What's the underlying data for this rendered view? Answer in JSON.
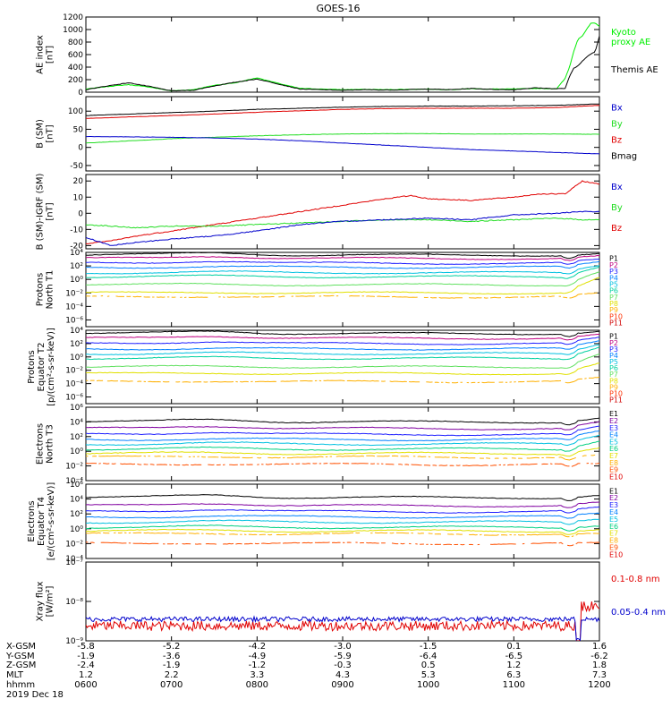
{
  "title": "GOES-16",
  "colors": {
    "black": "#000000",
    "red": "#e00000",
    "green": "#22dd22",
    "blue": "#0000cc",
    "ae_green": "#00ee00",
    "ae_black": "#000000"
  },
  "legend_colors": {
    "P": [
      "#000000",
      "#c00080",
      "#2020ff",
      "#0080ff",
      "#00c0e0",
      "#00d0a0",
      "#60e060",
      "#e0e000",
      "#ffb000",
      "#ff3000",
      "#d00000"
    ],
    "E": [
      "#000000",
      "#8000a0",
      "#2020ff",
      "#0080ff",
      "#00c0e0",
      "#00d080",
      "#e0e000",
      "#ffb000",
      "#ff5000",
      "#e00000",
      "#c00000"
    ]
  },
  "panels": [
    {
      "ylabel": [
        "AE index",
        "[nT]"
      ],
      "scale": "linear",
      "ylim": [
        0,
        1200
      ],
      "ticks": [
        {
          "v": 0,
          "t": "0"
        },
        {
          "v": 200,
          "t": "200"
        },
        {
          "v": 400,
          "t": "400"
        },
        {
          "v": 600,
          "t": "600"
        },
        {
          "v": 800,
          "t": "800"
        },
        {
          "v": 1000,
          "t": "1000"
        },
        {
          "v": 1200,
          "t": "1200"
        }
      ],
      "legend": [
        {
          "text": "Kyoto",
          "color": "#00ee00"
        },
        {
          "text": "proxy AE",
          "color": "#00ee00"
        },
        {
          "text": "Themis AE",
          "color": "#000000"
        }
      ]
    },
    {
      "ylabel": [
        "B (SM)",
        "[nT]"
      ],
      "scale": "linear",
      "ylim": [
        -65,
        140
      ],
      "ticks": [
        {
          "v": -50,
          "t": "-50"
        },
        {
          "v": 0,
          "t": "0"
        },
        {
          "v": 50,
          "t": "50"
        },
        {
          "v": 100,
          "t": "100"
        }
      ],
      "legend": [
        {
          "text": "Bx",
          "color": "#0000cc"
        },
        {
          "text": "By",
          "color": "#22dd22"
        },
        {
          "text": "Bz",
          "color": "#e00000"
        },
        {
          "text": "Bmag",
          "color": "#000000"
        }
      ]
    },
    {
      "ylabel": [
        "B (SM)-IGRF (SM)",
        "[nT]"
      ],
      "scale": "linear",
      "ylim": [
        -22,
        24
      ],
      "ticks": [
        {
          "v": -20,
          "t": "-20"
        },
        {
          "v": -10,
          "t": "-10"
        },
        {
          "v": 0,
          "t": "0"
        },
        {
          "v": 10,
          "t": "10"
        },
        {
          "v": 20,
          "t": "20"
        }
      ],
      "legend": [
        {
          "text": "Bx",
          "color": "#0000cc"
        },
        {
          "text": "By",
          "color": "#22dd22"
        },
        {
          "text": "Bz",
          "color": "#e00000"
        }
      ]
    },
    {
      "ylabel": [
        "Protons",
        "North T1"
      ],
      "scale": "log",
      "ylim": [
        -7,
        4
      ],
      "ticks": [
        {
          "v": 4,
          "t": "10⁴"
        },
        {
          "v": 2,
          "t": "10²"
        },
        {
          "v": 0,
          "t": "10⁰"
        },
        {
          "v": -2,
          "t": "10⁻²"
        },
        {
          "v": -4,
          "t": "10⁻⁴"
        },
        {
          "v": -6,
          "t": "10⁻⁶"
        }
      ],
      "channels": [
        "P1",
        "P2",
        "P3",
        "P4",
        "P5",
        "P6",
        "P7",
        "P8",
        "P9",
        "P10",
        "P11"
      ]
    },
    {
      "ylabel": [
        "Protons",
        "Equator T2",
        "[p/(cm²-s-sr-keV)]"
      ],
      "scale": "log",
      "ylim": [
        -7,
        4
      ],
      "ticks": [
        {
          "v": 4,
          "t": "10⁴"
        },
        {
          "v": 2,
          "t": "10²"
        },
        {
          "v": 0,
          "t": "10⁰"
        },
        {
          "v": -2,
          "t": "10⁻²"
        },
        {
          "v": -4,
          "t": "10⁻⁴"
        },
        {
          "v": -6,
          "t": "10⁻⁶"
        }
      ],
      "channels": [
        "P1",
        "P2",
        "P3",
        "P4",
        "P5",
        "P6",
        "P7",
        "P8",
        "P9",
        "P10",
        "P11"
      ]
    },
    {
      "ylabel": [
        "Electrons",
        "North T3"
      ],
      "scale": "log",
      "ylim": [
        -4,
        6
      ],
      "ticks": [
        {
          "v": 6,
          "t": "10⁶"
        },
        {
          "v": 4,
          "t": "10⁴"
        },
        {
          "v": 2,
          "t": "10²"
        },
        {
          "v": 0,
          "t": "10⁰"
        },
        {
          "v": -2,
          "t": "10⁻²"
        },
        {
          "v": -4,
          "t": "10⁻⁴"
        }
      ],
      "channels": [
        "E1",
        "E2",
        "E3",
        "E4",
        "E5",
        "E6",
        "E7",
        "E8",
        "E9",
        "E10"
      ]
    },
    {
      "ylabel": [
        "Electrons",
        "Equator T4",
        "[e/(cm²-s-sr-keV)]"
      ],
      "scale": "log",
      "ylim": [
        -4,
        6
      ],
      "ticks": [
        {
          "v": 6,
          "t": "10⁶"
        },
        {
          "v": 4,
          "t": "10⁴"
        },
        {
          "v": 2,
          "t": "10²"
        },
        {
          "v": 0,
          "t": "10⁰"
        },
        {
          "v": -2,
          "t": "10⁻²"
        },
        {
          "v": -4,
          "t": "10⁻⁴"
        }
      ],
      "channels": [
        "E1",
        "E2",
        "E3",
        "E4",
        "E5",
        "E6",
        "E7",
        "E8",
        "E9",
        "E10"
      ]
    },
    {
      "ylabel": [
        "Xray flux",
        "[W/m²]"
      ],
      "scale": "log",
      "ylim": [
        -9,
        -7
      ],
      "ticks": [
        {
          "v": -7,
          "t": "10⁻⁷"
        },
        {
          "v": -8,
          "t": "10⁻⁸"
        },
        {
          "v": -9,
          "t": "10⁻⁹"
        }
      ],
      "legend": [
        {
          "text": "0.1-0.8 nm",
          "color": "#e00000"
        },
        {
          "text": "0.05-0.4 nm",
          "color": "#0000cc"
        }
      ]
    }
  ],
  "chart_data": {
    "type": "line",
    "title": "GOES-16",
    "x": [
      "0600",
      "0700",
      "0800",
      "0900",
      "1000",
      "1100",
      "1200"
    ],
    "xlabel": "hhmm",
    "date": "2019 Dec 18",
    "series": [
      {
        "panel": 0,
        "name": "Kyoto proxy AE",
        "color": "#00ee00",
        "x": [
          0,
          0.25,
          0.5,
          0.75,
          1.0,
          1.25,
          1.5,
          1.75,
          2.0,
          2.25,
          2.5,
          2.75,
          3.0,
          3.25,
          3.5,
          3.75,
          4.0,
          4.25,
          4.5,
          4.75,
          5.0,
          5.25,
          5.5,
          5.6,
          5.65,
          5.7,
          5.75,
          5.8,
          5.85,
          5.9,
          5.95,
          6.0
        ],
        "y": [
          50,
          90,
          120,
          80,
          20,
          40,
          110,
          150,
          230,
          140,
          60,
          50,
          40,
          45,
          40,
          45,
          50,
          40,
          55,
          50,
          50,
          60,
          55,
          220,
          400,
          650,
          850,
          900,
          1000,
          1100,
          1100,
          1050
        ]
      },
      {
        "panel": 0,
        "name": "Themis AE",
        "color": "#000000",
        "x": [
          0,
          0.25,
          0.5,
          0.75,
          1.0,
          1.25,
          1.5,
          1.75,
          2.0,
          2.25,
          2.5,
          2.75,
          3.0,
          3.25,
          3.5,
          3.75,
          4.0,
          4.25,
          4.5,
          4.75,
          5.0,
          5.25,
          5.5,
          5.6,
          5.65,
          5.7,
          5.75,
          5.8,
          5.85,
          5.9,
          5.95,
          6.0
        ],
        "y": [
          40,
          100,
          150,
          90,
          20,
          30,
          100,
          160,
          210,
          130,
          50,
          40,
          30,
          40,
          35,
          40,
          50,
          40,
          60,
          45,
          40,
          70,
          55,
          60,
          250,
          380,
          420,
          500,
          560,
          610,
          640,
          900
        ]
      },
      {
        "panel": 1,
        "name": "Bz",
        "color": "#e00000",
        "x": [
          0,
          0.5,
          1,
          1.5,
          2,
          2.5,
          3,
          3.5,
          4,
          4.5,
          5,
          5.5,
          6
        ],
        "y": [
          80,
          84,
          88,
          92,
          97,
          101,
          105,
          107,
          108,
          108,
          108,
          110,
          116
        ]
      },
      {
        "panel": 1,
        "name": "By",
        "color": "#22dd22",
        "x": [
          0,
          0.5,
          1,
          1.5,
          2,
          2.5,
          3,
          3.5,
          4,
          4.5,
          5,
          5.5,
          6
        ],
        "y": [
          12,
          18,
          24,
          28,
          32,
          35,
          37,
          38,
          38,
          37,
          37,
          37,
          36
        ]
      },
      {
        "panel": 1,
        "name": "Bx",
        "color": "#0000cc",
        "x": [
          0,
          0.5,
          1,
          1.5,
          2,
          2.5,
          3,
          3.5,
          4,
          4.5,
          5,
          5.5,
          6
        ],
        "y": [
          30,
          29,
          28,
          26,
          23,
          18,
          12,
          6,
          0,
          -6,
          -10,
          -14,
          -18
        ]
      },
      {
        "panel": 1,
        "name": "Bmag",
        "color": "#000000",
        "x": [
          0,
          0.5,
          1,
          1.5,
          2,
          2.5,
          3,
          3.5,
          4,
          4.5,
          5,
          5.5,
          6
        ],
        "y": [
          88,
          92,
          96,
          100,
          105,
          108,
          111,
          113,
          114,
          114,
          115,
          116,
          120
        ]
      },
      {
        "panel": 2,
        "name": "Bz",
        "color": "#e00000",
        "x": [
          0,
          0.3,
          0.6,
          1,
          1.5,
          2,
          2.5,
          3,
          3.5,
          3.8,
          4,
          4.5,
          5,
          5.3,
          5.6,
          5.8,
          6
        ],
        "y": [
          -19,
          -17,
          -14,
          -11,
          -7,
          -3,
          1,
          5,
          9,
          11,
          9,
          8,
          10,
          12,
          12,
          20,
          18
        ]
      },
      {
        "panel": 2,
        "name": "By",
        "color": "#22dd22",
        "x": [
          0,
          0.3,
          0.6,
          1,
          1.5,
          2,
          2.5,
          3,
          3.5,
          4,
          4.5,
          5,
          5.5,
          5.8,
          6
        ],
        "y": [
          -7,
          -8,
          -9,
          -8,
          -8,
          -7,
          -6,
          -5,
          -4,
          -4,
          -5,
          -4,
          -3,
          -4,
          -4
        ]
      },
      {
        "panel": 2,
        "name": "Bx",
        "color": "#0000cc",
        "x": [
          0,
          0.3,
          0.6,
          1,
          1.5,
          2,
          2.5,
          3,
          3.5,
          4,
          4.5,
          5,
          5.5,
          5.8,
          6
        ],
        "y": [
          -15,
          -20,
          -18,
          -16,
          -14,
          -11,
          -7,
          -5,
          -4,
          -3,
          -4,
          -1,
          0,
          1,
          1
        ]
      },
      {
        "panel": 3,
        "name": "Protons North T1 P1-P11",
        "levels": [
          3.6,
          3.1,
          2.4,
          1.8,
          1.0,
          0.4,
          -0.8,
          -2.0,
          -2.6,
          -99,
          -99
        ],
        "rise": [
          0.2,
          0.3,
          0.5,
          0.8,
          1.2,
          1.6,
          2.0,
          2.2,
          0.5,
          0,
          0
        ]
      },
      {
        "panel": 4,
        "name": "Protons Equator T2 P1-P11",
        "levels": [
          3.5,
          2.8,
          2.0,
          1.2,
          0.5,
          -0.2,
          -1.5,
          -2.5,
          -3.7,
          -99,
          -99
        ],
        "rise": [
          0.3,
          0.5,
          0.8,
          1.2,
          1.5,
          1.8,
          2.0,
          1.5,
          0.5,
          0,
          0
        ]
      },
      {
        "panel": 5,
        "name": "Electrons North T3 E1-E10",
        "levels": [
          4.0,
          3.1,
          2.3,
          1.6,
          1.0,
          0.3,
          -0.3,
          -0.8,
          -1.8,
          -99
        ],
        "rise": [
          0.5,
          0.8,
          1.0,
          1.2,
          1.3,
          1.2,
          0.8,
          0.2,
          0,
          0
        ]
      },
      {
        "panel": 6,
        "name": "Electrons Equator T4 E1-E10",
        "levels": [
          4.2,
          3.1,
          2.3,
          1.6,
          0.9,
          0.2,
          -0.3,
          -0.7,
          -2.0,
          -99
        ],
        "rise": [
          0.3,
          0.4,
          0.5,
          0.5,
          0.5,
          0.3,
          0.2,
          0,
          0,
          0
        ]
      },
      {
        "panel": 7,
        "name": "0.1-0.8 nm",
        "color": "#e00000",
        "mean": -8.62
      },
      {
        "panel": 7,
        "name": "0.05-0.4 nm",
        "color": "#0000cc",
        "mean": -8.45
      }
    ]
  },
  "axis_rows": [
    {
      "label": "X-GSM",
      "values": [
        "-5.8",
        "-5.2",
        "-4.2",
        "-3.0",
        "-1.5",
        "0.1",
        "1.6"
      ]
    },
    {
      "label": "Y-GSM",
      "values": [
        "-1.9",
        "-3.6",
        "-4.9",
        "-5.9",
        "-6.4",
        "-6.5",
        "-6.2"
      ]
    },
    {
      "label": "Z-GSM",
      "values": [
        "-2.4",
        "-1.9",
        "-1.2",
        "-0.3",
        "0.5",
        "1.2",
        "1.8"
      ]
    },
    {
      "label": "MLT",
      "values": [
        "1.2",
        "2.2",
        "3.3",
        "4.3",
        "5.3",
        "6.3",
        "7.3"
      ]
    },
    {
      "label": "hhmm",
      "values": [
        "0600",
        "0700",
        "0800",
        "0900",
        "1000",
        "1100",
        "1200"
      ]
    }
  ],
  "date": "2019 Dec 18"
}
